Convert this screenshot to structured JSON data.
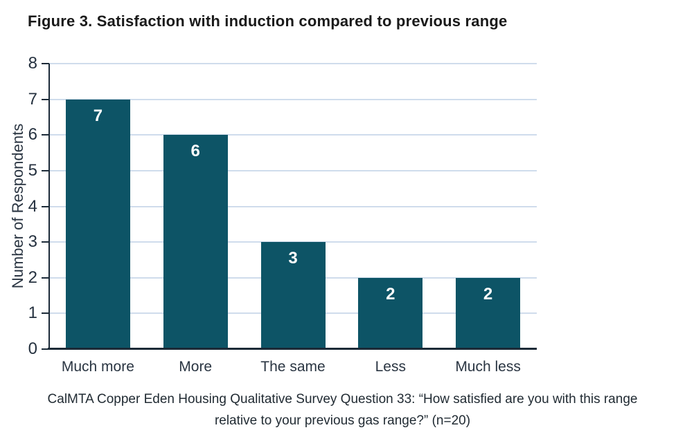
{
  "figure": {
    "title": "Figure 3. Satisfaction with induction compared to previous range",
    "caption_line1": "CalMTA Copper Eden Housing Qualitative Survey Question 33: “How satisfied are you with this range",
    "caption_line2": "relative to your previous gas range?” (n=20)"
  },
  "chart_data": {
    "type": "bar",
    "title": "Figure 3. Satisfaction with induction compared to previous range",
    "categories": [
      "Much more",
      "More",
      "The same",
      "Less",
      "Much less"
    ],
    "values": [
      7,
      6,
      3,
      2,
      2
    ],
    "xlabel": "",
    "ylabel": "Number of Respondents",
    "ylim": [
      0,
      8
    ],
    "yticks": [
      0,
      1,
      2,
      3,
      4,
      5,
      6,
      7,
      8
    ],
    "grid": true,
    "legend": false,
    "bar_color": "#0d5466",
    "gridline_color": "#cfdcec",
    "axis_color": "#1b2a38",
    "value_label_color": "#ffffff",
    "caption": "CalMTA Copper Eden Housing Qualitative Survey Question 33: “How satisfied are you with this range relative to your previous gas range?” (n=20)"
  }
}
